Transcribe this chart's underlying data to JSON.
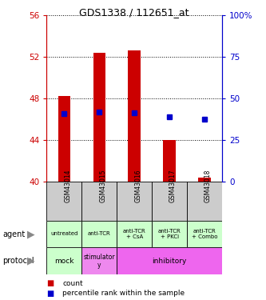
{
  "title": "GDS1338 / 112651_at",
  "samples": [
    "GSM43014",
    "GSM43015",
    "GSM43016",
    "GSM43017",
    "GSM43018"
  ],
  "bar_bottoms": [
    40.0,
    40.0,
    40.0,
    40.0,
    40.0
  ],
  "bar_tops": [
    48.2,
    52.4,
    52.6,
    44.0,
    40.4
  ],
  "percentile_y_vals": [
    46.5,
    46.7,
    46.6,
    46.2,
    46.0
  ],
  "left_yticks": [
    40,
    44,
    48,
    52,
    56
  ],
  "right_yticks": [
    0,
    25,
    50,
    75,
    100
  ],
  "ylim": [
    40,
    56
  ],
  "agent_labels": [
    "untreated",
    "anti-TCR",
    "anti-TCR\n+ CsA",
    "anti-TCR\n+ PKCi",
    "anti-TCR\n+ Combo"
  ],
  "agent_bg": "#ccffcc",
  "protocol_inhibitory_bg": "#ee66ee",
  "protocol_mock_bg": "#ccffcc",
  "protocol_stimulatory_bg": "#ee88ee",
  "sample_bg": "#cccccc",
  "bar_color": "#cc0000",
  "percentile_color": "#0000cc",
  "axis_color_left": "#cc0000",
  "axis_color_right": "#0000cc",
  "legend_count_color": "#cc0000",
  "legend_pct_color": "#0000cc"
}
